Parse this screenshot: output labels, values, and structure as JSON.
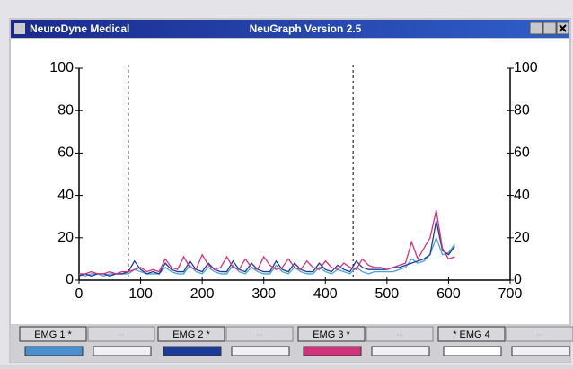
{
  "window": {
    "app_name": "NeuroDyne Medical",
    "title": "NeuGraph Version 2.5"
  },
  "chart_data": {
    "type": "line",
    "x": [
      0,
      10,
      20,
      30,
      40,
      50,
      60,
      70,
      80,
      90,
      100,
      110,
      120,
      130,
      140,
      150,
      160,
      170,
      180,
      190,
      200,
      210,
      220,
      230,
      240,
      250,
      260,
      270,
      280,
      290,
      300,
      310,
      320,
      330,
      340,
      350,
      360,
      370,
      380,
      390,
      400,
      410,
      420,
      430,
      440,
      450,
      460,
      470,
      480,
      490,
      500,
      510,
      520,
      530,
      540,
      550,
      560,
      570,
      580,
      590,
      600,
      610
    ],
    "series": [
      {
        "color": "#4aa3d6",
        "values": [
          3,
          2,
          3,
          3,
          2,
          3,
          3,
          3,
          3,
          5,
          4,
          3,
          3,
          3,
          6,
          4,
          3,
          3,
          7,
          4,
          3,
          6,
          4,
          3,
          3,
          7,
          4,
          3,
          6,
          4,
          3,
          3,
          7,
          4,
          3,
          6,
          4,
          3,
          3,
          6,
          4,
          3,
          5,
          4,
          3,
          6,
          4,
          3,
          4,
          4,
          4,
          4,
          5,
          6,
          10,
          8,
          9,
          12,
          20,
          12,
          13,
          17
        ]
      },
      {
        "color": "#1c3a9a",
        "values": [
          2,
          3,
          2,
          3,
          3,
          2,
          3,
          3,
          4,
          9,
          5,
          3,
          4,
          3,
          8,
          5,
          4,
          4,
          9,
          5,
          4,
          8,
          5,
          4,
          4,
          9,
          5,
          4,
          8,
          5,
          4,
          4,
          9,
          5,
          4,
          8,
          5,
          4,
          4,
          8,
          5,
          4,
          7,
          5,
          4,
          9,
          6,
          5,
          5,
          5,
          5,
          6,
          6,
          7,
          8,
          9,
          10,
          12,
          28,
          14,
          12,
          16
        ]
      },
      {
        "color": "#d2327c",
        "values": [
          3,
          3,
          4,
          3,
          3,
          4,
          3,
          4,
          4,
          5,
          6,
          4,
          5,
          4,
          10,
          6,
          5,
          11,
          6,
          5,
          12,
          7,
          5,
          6,
          11,
          6,
          5,
          10,
          6,
          5,
          11,
          7,
          5,
          6,
          10,
          6,
          5,
          9,
          6,
          5,
          9,
          6,
          5,
          8,
          6,
          5,
          10,
          7,
          6,
          6,
          5,
          6,
          7,
          8,
          18,
          10,
          15,
          20,
          33,
          15,
          10,
          11
        ]
      }
    ],
    "markers": [
      80,
      445
    ],
    "xlim": [
      0,
      700
    ],
    "xticks": [
      0,
      100,
      200,
      300,
      400,
      500,
      600,
      700
    ],
    "ylim": [
      0,
      100
    ],
    "yticks": [
      0,
      20,
      40,
      60,
      80,
      100
    ],
    "y2lim": [
      0,
      100
    ],
    "y2ticks": [
      0,
      20,
      40,
      60,
      80,
      100
    ]
  },
  "tabs": [
    {
      "label": "EMG 1 *",
      "color": "#4a8fd0"
    },
    {
      "label": "EMG 2 *",
      "color": "#1c3a9a"
    },
    {
      "label": "EMG 3 *",
      "color": "#d2327c"
    },
    {
      "label": "* EMG 4",
      "color": "#ffffff"
    }
  ],
  "blank_tab_label": "..."
}
